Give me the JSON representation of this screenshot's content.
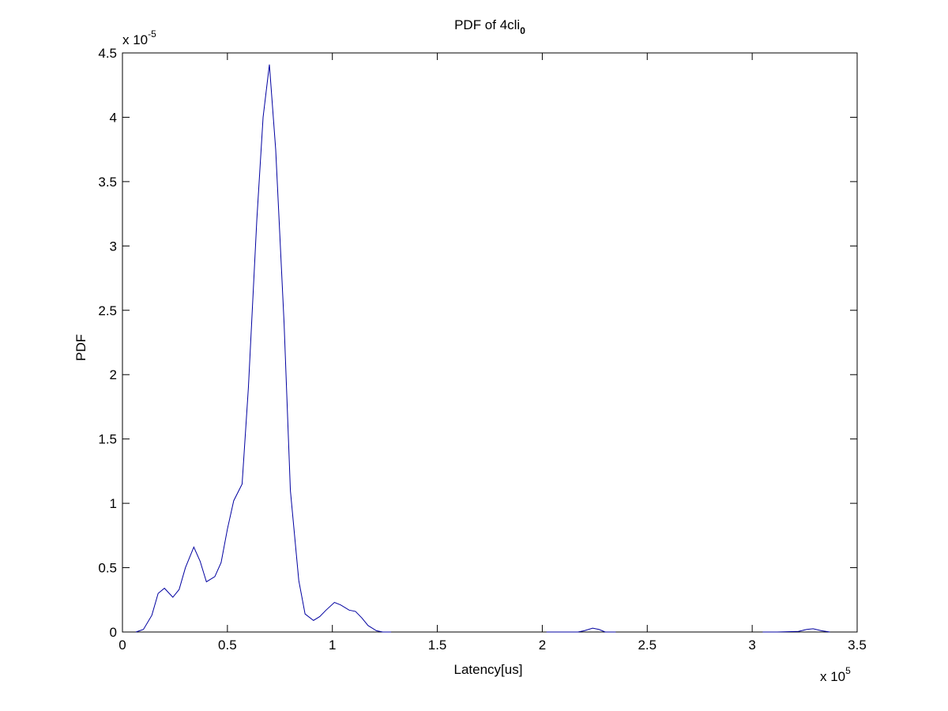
{
  "chart_data": {
    "type": "line",
    "title": "PDF of 4cli",
    "title_subscript": "0",
    "x_label": "Latency[us]",
    "y_label": "PDF",
    "x_multiplier": {
      "base": "x 10",
      "exponent": "5"
    },
    "y_multiplier": {
      "base": "x 10",
      "exponent": "-5"
    },
    "xlim": [
      0,
      3.5
    ],
    "ylim": [
      0,
      4.5
    ],
    "xticks": [
      0,
      0.5,
      1,
      1.5,
      2,
      2.5,
      3,
      3.5
    ],
    "yticks": [
      0,
      0.5,
      1,
      1.5,
      2,
      2.5,
      3,
      3.5,
      4,
      4.5
    ],
    "grid": false,
    "x": [
      0.064,
      0.1,
      0.14,
      0.17,
      0.2,
      0.24,
      0.27,
      0.3,
      0.34,
      0.37,
      0.4,
      0.44,
      0.47,
      0.5,
      0.53,
      0.57,
      0.6,
      0.64,
      0.67,
      0.7,
      0.73,
      0.77,
      0.8,
      0.84,
      0.87,
      0.91,
      0.94,
      0.97,
      1.01,
      1.04,
      1.08,
      1.11,
      1.14,
      1.17,
      1.21,
      1.24,
      1.28,
      1.3,
      2.02,
      2.1,
      2.17,
      2.2,
      2.24,
      2.27,
      2.3,
      2.35,
      2.4,
      3.05,
      3.12,
      3.22,
      3.26,
      3.29,
      3.33,
      3.37
    ],
    "series": [
      {
        "name": "PDF",
        "color": "#0000a0",
        "values": [
          0,
          0.02,
          0.13,
          0.3,
          0.34,
          0.27,
          0.33,
          0.5,
          0.66,
          0.55,
          0.39,
          0.43,
          0.54,
          0.8,
          1.02,
          1.15,
          1.9,
          3.2,
          4.0,
          4.41,
          3.75,
          2.4,
          1.1,
          0.4,
          0.14,
          0.09,
          0.12,
          0.17,
          0.23,
          0.21,
          0.17,
          0.16,
          0.11,
          0.05,
          0.01,
          0,
          0,
          null,
          0,
          0,
          0,
          0.01,
          0.03,
          0.02,
          0,
          0,
          null,
          0,
          0,
          0.005,
          0.02,
          0.025,
          0.01,
          0
        ]
      }
    ]
  }
}
